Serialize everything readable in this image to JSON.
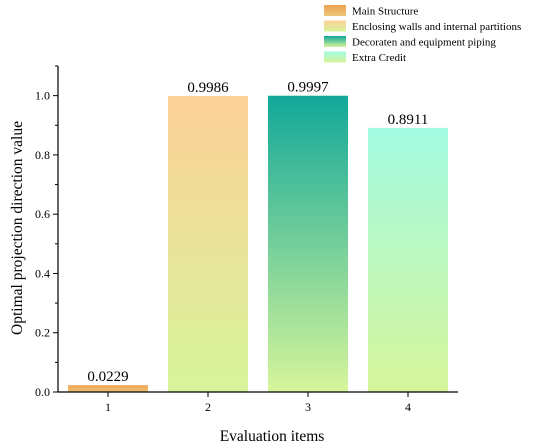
{
  "chart_data": {
    "type": "bar",
    "categories": [
      "1",
      "2",
      "3",
      "4"
    ],
    "values": [
      0.0229,
      0.9986,
      0.9997,
      0.8911
    ],
    "data_labels": [
      "0.0229",
      "0.9986",
      "0.9997",
      "0.8911"
    ],
    "series": [
      {
        "name": "Main Structure",
        "value": 0.0229,
        "color_top": "#f0a050",
        "color_bottom": "#e8c87a"
      },
      {
        "name": "Enclosing walls and internal partitions",
        "value": 0.9986,
        "color_top": "#fdd098",
        "color_bottom": "#d6f59a"
      },
      {
        "name": "Decoraten and equipment piping",
        "value": 0.9997,
        "color_top": "#12a89a",
        "color_bottom": "#d6f59a"
      },
      {
        "name": "Extra Credit",
        "value": 0.8911,
        "color_top": "#a2fae2",
        "color_bottom": "#d6f59a"
      }
    ],
    "title": "",
    "xlabel": "Evaluation items",
    "ylabel": "Optimal projection direction value",
    "ylim": [
      0,
      1.1
    ],
    "yticks": [
      0.0,
      0.2,
      0.4,
      0.6,
      0.8,
      1.0
    ],
    "ytick_labels": [
      "0.0",
      "0.2",
      "0.4",
      "0.6",
      "0.8",
      "1.0"
    ],
    "grid": false,
    "legend_position": "top-right"
  }
}
